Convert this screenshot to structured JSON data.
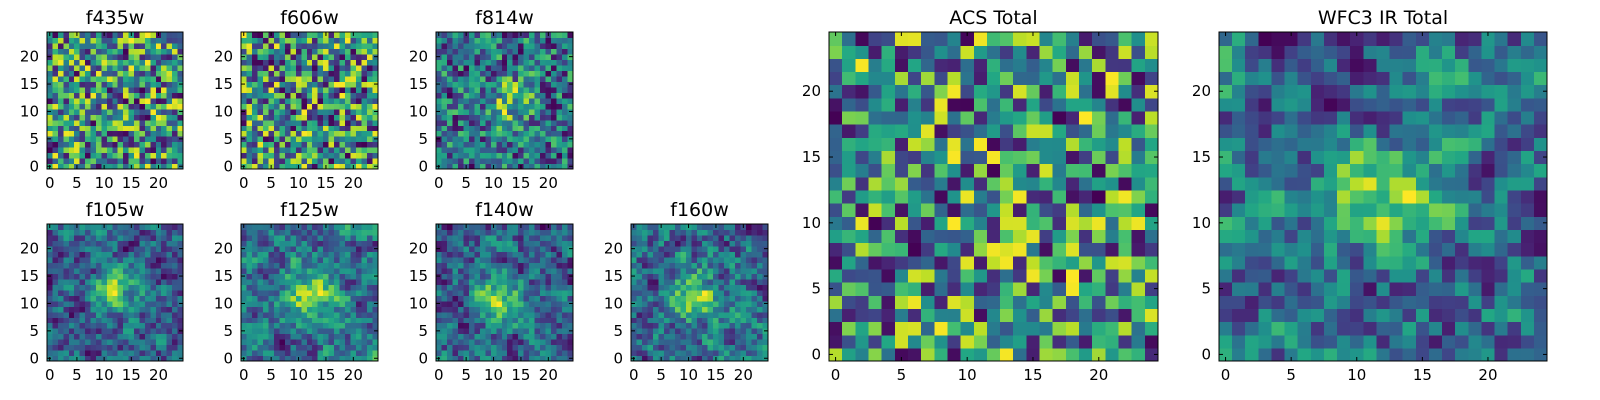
{
  "chart_data": [
    {
      "type": "heatmap",
      "title": "f435w",
      "colormap": "viridis",
      "grid_size": 25,
      "xticks": [
        "0",
        "5",
        "10",
        "15",
        "20"
      ],
      "yticks": [
        "0",
        "5",
        "10",
        "15",
        "20"
      ],
      "xlim": [
        0,
        24
      ],
      "ylim": [
        0,
        24
      ],
      "hotspot": null,
      "smooth": false
    },
    {
      "type": "heatmap",
      "title": "f606w",
      "colormap": "viridis",
      "grid_size": 25,
      "xticks": [
        "0",
        "5",
        "10",
        "15",
        "20"
      ],
      "yticks": [
        "0",
        "5",
        "10",
        "15",
        "20"
      ],
      "xlim": [
        0,
        24
      ],
      "ylim": [
        0,
        24
      ],
      "hotspot": null,
      "smooth": false
    },
    {
      "type": "heatmap",
      "title": "f814w",
      "colormap": "viridis",
      "grid_size": 25,
      "xticks": [
        "0",
        "5",
        "10",
        "15",
        "20"
      ],
      "yticks": [
        "0",
        "5",
        "10",
        "15",
        "20"
      ],
      "xlim": [
        0,
        24
      ],
      "ylim": [
        0,
        24
      ],
      "hotspot": [
        13,
        12
      ],
      "smooth": false
    },
    {
      "type": "heatmap",
      "title": "f105w",
      "colormap": "viridis",
      "grid_size": 25,
      "xticks": [
        "0",
        "5",
        "10",
        "15",
        "20"
      ],
      "yticks": [
        "0",
        "5",
        "10",
        "15",
        "20"
      ],
      "xlim": [
        0,
        24
      ],
      "ylim": [
        0,
        24
      ],
      "hotspot": [
        12,
        12
      ],
      "smooth": true
    },
    {
      "type": "heatmap",
      "title": "f125w",
      "colormap": "viridis",
      "grid_size": 25,
      "xticks": [
        "0",
        "5",
        "10",
        "15",
        "20"
      ],
      "yticks": [
        "0",
        "5",
        "10",
        "15",
        "20"
      ],
      "xlim": [
        0,
        24
      ],
      "ylim": [
        0,
        24
      ],
      "hotspot": [
        12,
        12
      ],
      "smooth": true
    },
    {
      "type": "heatmap",
      "title": "f140w",
      "colormap": "viridis",
      "grid_size": 25,
      "xticks": [
        "0",
        "5",
        "10",
        "15",
        "20"
      ],
      "yticks": [
        "0",
        "5",
        "10",
        "15",
        "20"
      ],
      "xlim": [
        0,
        24
      ],
      "ylim": [
        0,
        24
      ],
      "hotspot": [
        11,
        11
      ],
      "smooth": true
    },
    {
      "type": "heatmap",
      "title": "f160w",
      "colormap": "viridis",
      "grid_size": 25,
      "xticks": [
        "0",
        "5",
        "10",
        "15",
        "20"
      ],
      "yticks": [
        "0",
        "5",
        "10",
        "15",
        "20"
      ],
      "xlim": [
        0,
        24
      ],
      "ylim": [
        0,
        24
      ],
      "hotspot": [
        11,
        11
      ],
      "smooth": true
    },
    {
      "type": "heatmap",
      "title": "ACS Total",
      "colormap": "viridis",
      "grid_size": 25,
      "xticks": [
        "0",
        "5",
        "10",
        "15",
        "20"
      ],
      "yticks": [
        "0",
        "5",
        "10",
        "15",
        "20"
      ],
      "xlim": [
        0,
        24
      ],
      "ylim": [
        0,
        24
      ],
      "hotspot": null,
      "smooth": false
    },
    {
      "type": "heatmap",
      "title": "WFC3 IR Total",
      "colormap": "viridis",
      "grid_size": 25,
      "xticks": [
        "0",
        "5",
        "10",
        "15",
        "20"
      ],
      "yticks": [
        "0",
        "5",
        "10",
        "15",
        "20"
      ],
      "xlim": [
        0,
        24
      ],
      "ylim": [
        0,
        24
      ],
      "hotspot": [
        12,
        12
      ],
      "smooth": true
    }
  ]
}
